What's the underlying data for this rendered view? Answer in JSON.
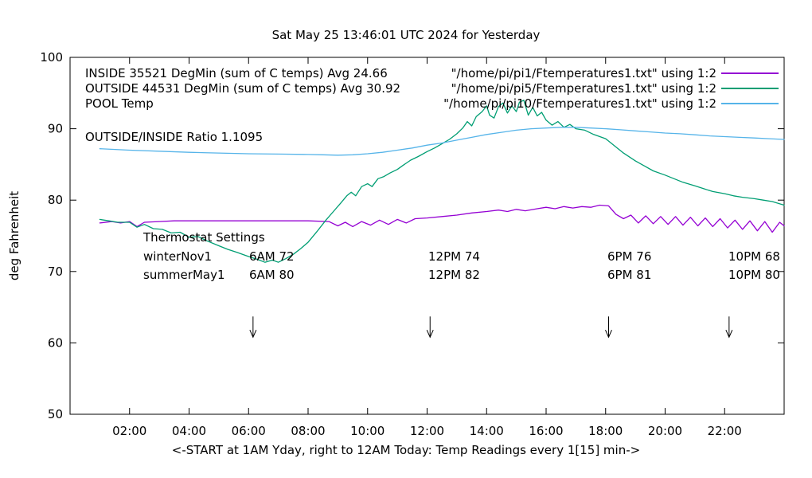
{
  "title": "Sat May 25 13:46:01 UTC 2024 for Yesterday",
  "ylabel": "deg Fahrenheit",
  "xlabel": "<-START at 1AM Yday, right to 12AM Today:  Temp Readings every 1[15] min->",
  "ratio_label": "OUTSIDE/INSIDE Ratio 1.1095",
  "colors": {
    "inside": "#9400d3",
    "outside": "#009e73",
    "pool": "#56b4e9",
    "axis": "#000000"
  },
  "legend": [
    {
      "label": "INSIDE 35521 DegMin (sum of C temps) Avg 24.66",
      "file": "\"/home/pi/pi1/Ftemperatures1.txt\" using 1:2",
      "series": "inside"
    },
    {
      "label": "OUTSIDE 44531 DegMin (sum of C temps) Avg 30.92",
      "file": "\"/home/pi/pi5/Ftemperatures1.txt\" using 1:2",
      "series": "outside"
    },
    {
      "label": "POOL Temp",
      "file": "\"/home/pi/pi10/Ftemperatures1.txt\" using 1:2",
      "series": "pool"
    }
  ],
  "thermostat": {
    "heading": "Thermostat Settings",
    "rows": [
      {
        "name": "winterNov1",
        "cells": [
          "6AM 72",
          "12PM 74",
          "6PM 76",
          "10PM 68"
        ]
      },
      {
        "name": "summerMay1",
        "cells": [
          "6AM 80",
          "12PM 82",
          "6PM 81",
          "10PM 80"
        ]
      }
    ]
  },
  "chart_data": {
    "type": "line",
    "title": "Sat May 25 13:46:01 UTC 2024 for Yesterday",
    "xlabel": "<-START at 1AM Yday, right to 12AM Today:  Temp Readings every 1[15] min->",
    "ylabel": "deg Fahrenheit",
    "xlim": [
      0,
      24
    ],
    "ylim": [
      50,
      100
    ],
    "grid": false,
    "xticks": [
      {
        "v": 2,
        "label": "02:00"
      },
      {
        "v": 4,
        "label": "04:00"
      },
      {
        "v": 6,
        "label": "06:00"
      },
      {
        "v": 8,
        "label": "08:00"
      },
      {
        "v": 10,
        "label": "10:00"
      },
      {
        "v": 12,
        "label": "12:00"
      },
      {
        "v": 14,
        "label": "14:00"
      },
      {
        "v": 16,
        "label": "16:00"
      },
      {
        "v": 18,
        "label": "18:00"
      },
      {
        "v": 20,
        "label": "20:00"
      },
      {
        "v": 22,
        "label": "22:00"
      }
    ],
    "yticks": [
      {
        "v": 50,
        "label": "50"
      },
      {
        "v": 60,
        "label": "60"
      },
      {
        "v": 70,
        "label": "70"
      },
      {
        "v": 80,
        "label": "80"
      },
      {
        "v": 90,
        "label": "90"
      },
      {
        "v": 100,
        "label": "100"
      }
    ],
    "series": [
      {
        "name": "INSIDE",
        "color_key": "inside",
        "points": [
          [
            1.0,
            76.8
          ],
          [
            1.4,
            77.0
          ],
          [
            1.7,
            76.8
          ],
          [
            2.0,
            77.0
          ],
          [
            2.25,
            76.3
          ],
          [
            2.5,
            76.9
          ],
          [
            3.0,
            77.0
          ],
          [
            3.5,
            77.1
          ],
          [
            4.0,
            77.1
          ],
          [
            5.0,
            77.1
          ],
          [
            6.0,
            77.1
          ],
          [
            7.0,
            77.1
          ],
          [
            8.0,
            77.1
          ],
          [
            8.7,
            77.0
          ],
          [
            9.0,
            76.4
          ],
          [
            9.25,
            76.9
          ],
          [
            9.5,
            76.3
          ],
          [
            9.8,
            77.0
          ],
          [
            10.1,
            76.5
          ],
          [
            10.4,
            77.2
          ],
          [
            10.7,
            76.6
          ],
          [
            11.0,
            77.3
          ],
          [
            11.3,
            76.8
          ],
          [
            11.6,
            77.4
          ],
          [
            12.0,
            77.5
          ],
          [
            12.5,
            77.7
          ],
          [
            13.0,
            77.9
          ],
          [
            13.5,
            78.2
          ],
          [
            14.0,
            78.4
          ],
          [
            14.4,
            78.6
          ],
          [
            14.7,
            78.4
          ],
          [
            15.0,
            78.7
          ],
          [
            15.3,
            78.5
          ],
          [
            15.7,
            78.8
          ],
          [
            16.0,
            79.0
          ],
          [
            16.3,
            78.8
          ],
          [
            16.6,
            79.1
          ],
          [
            16.9,
            78.9
          ],
          [
            17.2,
            79.1
          ],
          [
            17.5,
            79.0
          ],
          [
            17.8,
            79.3
          ],
          [
            18.1,
            79.2
          ],
          [
            18.35,
            78.0
          ],
          [
            18.6,
            77.4
          ],
          [
            18.85,
            77.9
          ],
          [
            19.1,
            76.8
          ],
          [
            19.35,
            77.8
          ],
          [
            19.6,
            76.7
          ],
          [
            19.85,
            77.7
          ],
          [
            20.1,
            76.6
          ],
          [
            20.35,
            77.7
          ],
          [
            20.6,
            76.5
          ],
          [
            20.85,
            77.6
          ],
          [
            21.1,
            76.4
          ],
          [
            21.35,
            77.5
          ],
          [
            21.6,
            76.3
          ],
          [
            21.85,
            77.4
          ],
          [
            22.1,
            76.1
          ],
          [
            22.35,
            77.2
          ],
          [
            22.6,
            75.9
          ],
          [
            22.85,
            77.1
          ],
          [
            23.1,
            75.7
          ],
          [
            23.35,
            77.0
          ],
          [
            23.6,
            75.5
          ],
          [
            23.85,
            76.9
          ],
          [
            24.0,
            76.4
          ]
        ]
      },
      {
        "name": "OUTSIDE",
        "color_key": "outside",
        "points": [
          [
            1.0,
            77.3
          ],
          [
            1.3,
            77.1
          ],
          [
            1.6,
            76.9
          ],
          [
            2.0,
            76.9
          ],
          [
            2.25,
            76.2
          ],
          [
            2.5,
            76.6
          ],
          [
            2.8,
            76.0
          ],
          [
            3.1,
            75.9
          ],
          [
            3.4,
            75.4
          ],
          [
            3.7,
            75.5
          ],
          [
            4.0,
            74.8
          ],
          [
            4.3,
            74.9
          ],
          [
            4.6,
            74.3
          ],
          [
            5.0,
            73.6
          ],
          [
            5.3,
            73.1
          ],
          [
            5.6,
            72.7
          ],
          [
            6.0,
            72.1
          ],
          [
            6.3,
            71.7
          ],
          [
            6.55,
            71.3
          ],
          [
            6.8,
            71.6
          ],
          [
            7.0,
            71.3
          ],
          [
            7.25,
            71.8
          ],
          [
            7.5,
            72.4
          ],
          [
            7.75,
            73.2
          ],
          [
            8.0,
            74.1
          ],
          [
            8.3,
            75.6
          ],
          [
            8.6,
            77.2
          ],
          [
            8.85,
            78.4
          ],
          [
            9.1,
            79.6
          ],
          [
            9.3,
            80.6
          ],
          [
            9.45,
            81.1
          ],
          [
            9.6,
            80.6
          ],
          [
            9.8,
            81.9
          ],
          [
            10.0,
            82.3
          ],
          [
            10.15,
            81.9
          ],
          [
            10.35,
            83.0
          ],
          [
            10.55,
            83.3
          ],
          [
            10.75,
            83.8
          ],
          [
            11.0,
            84.3
          ],
          [
            11.2,
            84.9
          ],
          [
            11.45,
            85.6
          ],
          [
            11.7,
            86.1
          ],
          [
            12.0,
            86.8
          ],
          [
            12.25,
            87.3
          ],
          [
            12.5,
            87.9
          ],
          [
            12.75,
            88.5
          ],
          [
            13.0,
            89.3
          ],
          [
            13.2,
            90.1
          ],
          [
            13.35,
            91.0
          ],
          [
            13.5,
            90.4
          ],
          [
            13.65,
            91.7
          ],
          [
            13.85,
            92.4
          ],
          [
            14.0,
            93.2
          ],
          [
            14.1,
            91.9
          ],
          [
            14.25,
            91.5
          ],
          [
            14.4,
            93.1
          ],
          [
            14.55,
            93.6
          ],
          [
            14.7,
            92.2
          ],
          [
            14.85,
            93.2
          ],
          [
            15.0,
            92.4
          ],
          [
            15.1,
            93.7
          ],
          [
            15.25,
            94.0
          ],
          [
            15.4,
            91.9
          ],
          [
            15.55,
            93.0
          ],
          [
            15.7,
            91.8
          ],
          [
            15.85,
            92.3
          ],
          [
            16.0,
            91.2
          ],
          [
            16.2,
            90.5
          ],
          [
            16.4,
            91.0
          ],
          [
            16.6,
            90.2
          ],
          [
            16.8,
            90.6
          ],
          [
            17.0,
            90.0
          ],
          [
            17.3,
            89.8
          ],
          [
            17.6,
            89.2
          ],
          [
            18.0,
            88.6
          ],
          [
            18.3,
            87.6
          ],
          [
            18.6,
            86.6
          ],
          [
            19.0,
            85.5
          ],
          [
            19.3,
            84.8
          ],
          [
            19.6,
            84.1
          ],
          [
            20.0,
            83.5
          ],
          [
            20.3,
            83.0
          ],
          [
            20.6,
            82.5
          ],
          [
            21.0,
            82.0
          ],
          [
            21.3,
            81.6
          ],
          [
            21.6,
            81.2
          ],
          [
            22.0,
            80.9
          ],
          [
            22.3,
            80.6
          ],
          [
            22.6,
            80.4
          ],
          [
            23.0,
            80.2
          ],
          [
            23.3,
            80.0
          ],
          [
            23.6,
            79.8
          ],
          [
            24.0,
            79.3
          ]
        ]
      },
      {
        "name": "POOL",
        "color_key": "pool",
        "points": [
          [
            1.0,
            87.2
          ],
          [
            2.0,
            87.0
          ],
          [
            3.0,
            86.85
          ],
          [
            4.0,
            86.7
          ],
          [
            5.0,
            86.6
          ],
          [
            6.0,
            86.5
          ],
          [
            7.0,
            86.45
          ],
          [
            8.0,
            86.4
          ],
          [
            8.5,
            86.35
          ],
          [
            9.0,
            86.3
          ],
          [
            9.5,
            86.35
          ],
          [
            10.0,
            86.5
          ],
          [
            10.5,
            86.7
          ],
          [
            11.0,
            87.0
          ],
          [
            11.5,
            87.3
          ],
          [
            12.0,
            87.7
          ],
          [
            12.5,
            88.0
          ],
          [
            13.0,
            88.4
          ],
          [
            13.5,
            88.8
          ],
          [
            14.0,
            89.2
          ],
          [
            14.5,
            89.5
          ],
          [
            15.0,
            89.8
          ],
          [
            15.5,
            90.0
          ],
          [
            16.0,
            90.1
          ],
          [
            16.5,
            90.2
          ],
          [
            17.0,
            90.2
          ],
          [
            17.5,
            90.1
          ],
          [
            18.0,
            90.0
          ],
          [
            18.5,
            89.85
          ],
          [
            19.0,
            89.7
          ],
          [
            19.5,
            89.55
          ],
          [
            20.0,
            89.4
          ],
          [
            20.5,
            89.3
          ],
          [
            21.0,
            89.15
          ],
          [
            21.5,
            89.0
          ],
          [
            22.0,
            88.9
          ],
          [
            22.5,
            88.8
          ],
          [
            23.0,
            88.7
          ],
          [
            23.5,
            88.6
          ],
          [
            24.0,
            88.5
          ]
        ]
      }
    ],
    "arrows": {
      "x_hours": [
        6.15,
        12.1,
        18.1,
        22.15
      ],
      "y_from": 63.7,
      "y_to": 60.8
    }
  }
}
